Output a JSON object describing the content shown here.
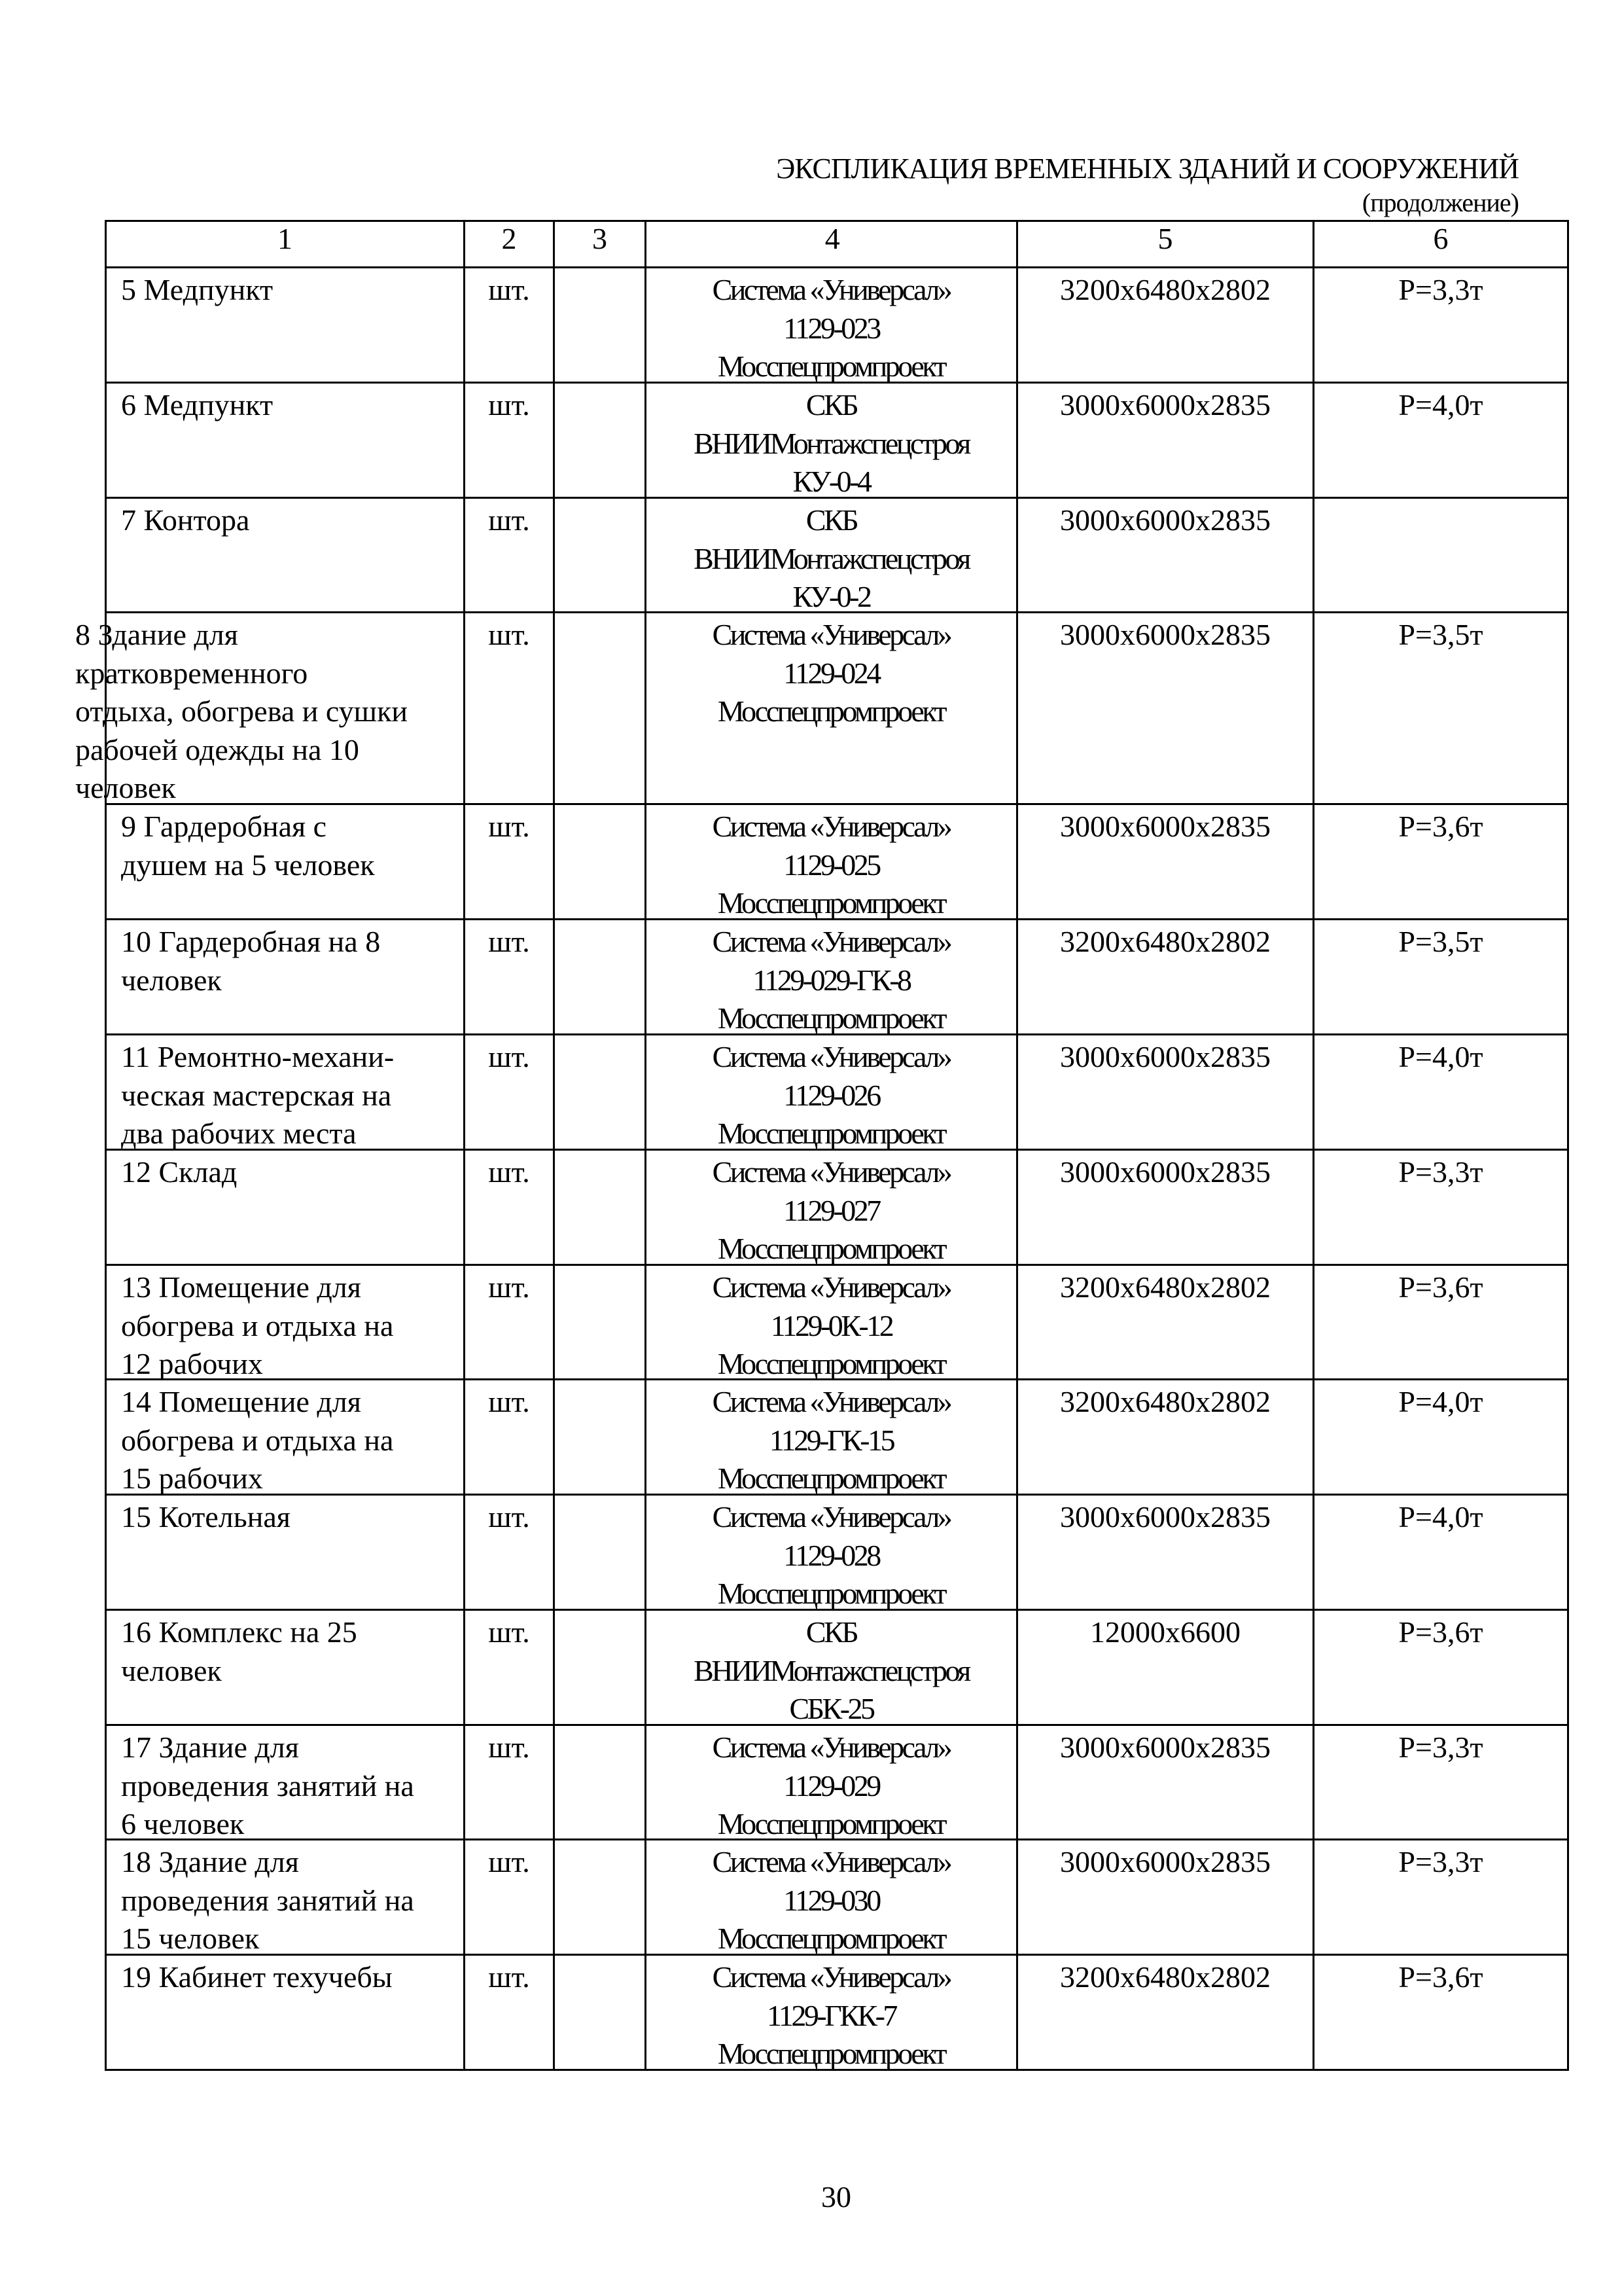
{
  "title": "ЭКСПЛИКАЦИЯ ВРЕМЕННЫХ ЗДАНИЙ И СООРУЖЕНИЙ",
  "subtitle": "(продолжение)",
  "table": {
    "headers": [
      "1",
      "2",
      "3",
      "4",
      "5",
      "6"
    ],
    "rows": [
      {
        "name": [
          "5 Медпункт"
        ],
        "unit": "шт.",
        "qty": "",
        "type": [
          "Система «Универсал»",
          "1129-023",
          "Мосспецпромпроект"
        ],
        "dims": "3200x6480x2802",
        "weight": "P=3,3т"
      },
      {
        "name": [
          "6 Медпункт"
        ],
        "unit": "шт.",
        "qty": "",
        "type": [
          "СКБ",
          "ВНИИМонтажспецстроя",
          "КУ-0-4"
        ],
        "dims": "3000x6000x2835",
        "weight": "P=4,0т"
      },
      {
        "name": [
          "7 Контора"
        ],
        "unit": "шт.",
        "qty": "",
        "type": [
          "СКБ",
          "ВНИИМонтажспецстроя",
          "КУ-0-2"
        ],
        "dims": "3000x6000x2835",
        "weight": ""
      },
      {
        "name": [
          "8 Здание для",
          "кратковременного",
          "отдыха, обогрева и сушки",
          "рабочей одежды на 10",
          "человек"
        ],
        "unit": "шт.",
        "qty": "",
        "type": [
          "Система «Универсал»",
          "1129-024",
          "Мосспецпромпроект"
        ],
        "dims": "3000x6000x2835",
        "weight": "P=3,5т",
        "overflow": true
      },
      {
        "name": [
          "9 Гардеробная с",
          "душем на 5 человек"
        ],
        "unit": "шт.",
        "qty": "",
        "type": [
          "Система «Универсал»",
          "1129-025",
          "Мосспецпромпроект"
        ],
        "dims": "3000x6000x2835",
        "weight": "P=3,6т"
      },
      {
        "name": [
          "10 Гардеробная  на  8",
          "человек"
        ],
        "unit": "шт.",
        "qty": "",
        "type": [
          "Система «Универсал»",
          "1129-029-ГК-8",
          "Мосспецпромпроект"
        ],
        "dims": "3200x6480x2802",
        "weight": "P=3,5т"
      },
      {
        "name": [
          "11 Ремонтно-механи-",
          "ческая мастерская на",
          "два рабочих места"
        ],
        "unit": "шт.",
        "qty": "",
        "type": [
          "Система «Универсал»",
          "1129-026",
          "Мосспецпромпроект"
        ],
        "dims": "3000x6000x2835",
        "weight": "P=4,0т"
      },
      {
        "name": [
          "12  Склад"
        ],
        "unit": "шт.",
        "qty": "",
        "type": [
          "Система «Универсал»",
          "1129-027",
          "Мосспецпромпроект"
        ],
        "dims": "3000x6000x2835",
        "weight": "P=3,3т"
      },
      {
        "name": [
          "13 Помещение  для",
          "обогрева и отдыха на",
          "12 рабочих"
        ],
        "unit": "шт.",
        "qty": "",
        "type": [
          "Система «Универсал»",
          "1129-0К-12",
          "Мосспецпромпроект"
        ],
        "dims": "3200x6480x2802",
        "weight": "P=3,6т"
      },
      {
        "name": [
          "14 Помещение  для",
          "обогрева и отдыха на",
          "15 рабочих"
        ],
        "unit": "шт.",
        "qty": "",
        "type": [
          "Система «Универсал»",
          "1129-ГК-15",
          "Мосспецпромпроект"
        ],
        "dims": "3200x6480x2802",
        "weight": "P=4,0т"
      },
      {
        "name": [
          "15 Котельная"
        ],
        "unit": "шт.",
        "qty": "",
        "type": [
          "Система «Универсал»",
          "1129-028",
          "Мосспецпромпроект"
        ],
        "dims": "3000x6000x2835",
        "weight": "P=4,0т"
      },
      {
        "name": [
          "16 Комплекс на 25",
          "человек"
        ],
        "unit": "шт.",
        "qty": "",
        "type": [
          "СКБ",
          "ВНИИМонтажспецстроя",
          "СБК-25"
        ],
        "dims": "12000x6600",
        "weight": "P=3,6т"
      },
      {
        "name": [
          "17 Здание для",
          "проведения занятий на",
          "6 человек"
        ],
        "unit": "шт.",
        "qty": "",
        "type": [
          "Система «Универсал»",
          "1129-029",
          "Мосспецпромпроект"
        ],
        "dims": "3000x6000x2835",
        "weight": "P=3,3т"
      },
      {
        "name": [
          "18 Здание для",
          "проведения занятий на",
          "15 человек"
        ],
        "unit": "шт.",
        "qty": "",
        "type": [
          "Система «Универсал»",
          "1129-030",
          "Мосспецпромпроект"
        ],
        "dims": "3000x6000x2835",
        "weight": "P=3,3т"
      },
      {
        "name": [
          "19 Кабинет техучебы"
        ],
        "unit": "шт.",
        "qty": "",
        "type": [
          "Система «Универсал»",
          "1129-ГКК-7",
          "Мосспецпромпроект"
        ],
        "dims": "3200x6480x2802",
        "weight": "P=3,6т"
      }
    ]
  },
  "page_number": "30"
}
